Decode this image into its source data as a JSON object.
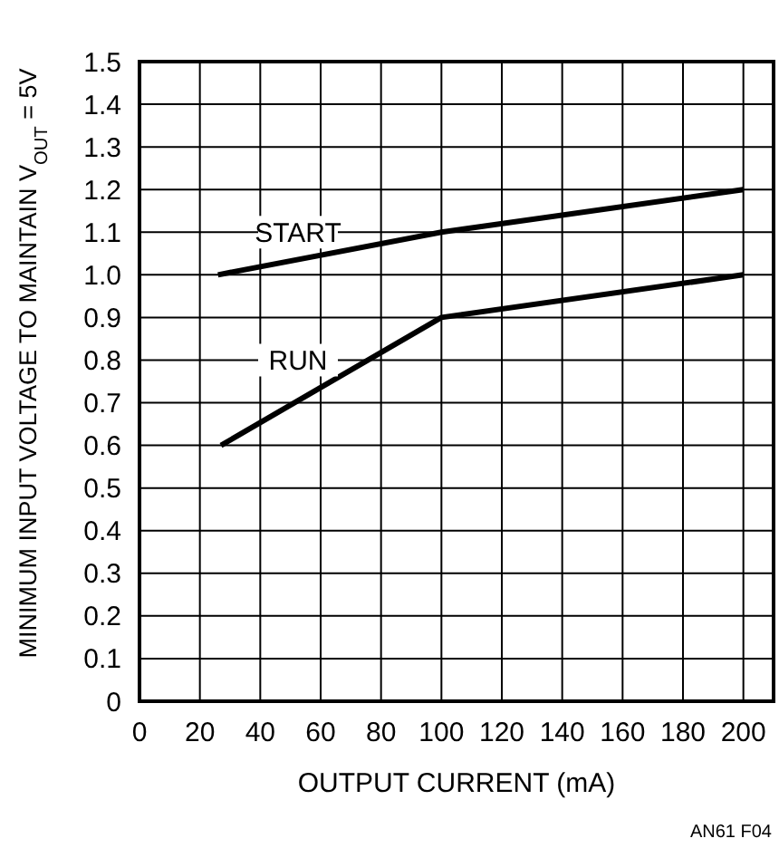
{
  "chart_data": {
    "type": "line",
    "xlabel": "OUTPUT CURRENT (mA)",
    "ylabel": "MINIMUM INPUT VOLTAGE TO MAINTAIN V$_{OUT}$ = 5V",
    "annotations": [
      "AN61 F04"
    ],
    "xlim": [
      0,
      210
    ],
    "xticks": [
      0,
      20,
      40,
      60,
      80,
      100,
      120,
      140,
      160,
      180,
      200
    ],
    "ylim": [
      0,
      1.5
    ],
    "yticks": [
      {
        "value": 0,
        "label": "0"
      },
      {
        "value": 0.1,
        "label": "0.1"
      },
      {
        "value": 0.2,
        "label": "0.2"
      },
      {
        "value": 0.3,
        "label": "0.3"
      },
      {
        "value": 0.4,
        "label": "0.4"
      },
      {
        "value": 0.5,
        "label": "0.5"
      },
      {
        "value": 0.6,
        "label": "0.6"
      },
      {
        "value": 0.7,
        "label": "0.7"
      },
      {
        "value": 0.8,
        "label": "0.8"
      },
      {
        "value": 0.9,
        "label": "0.9"
      },
      {
        "value": 1,
        "label": "1.0"
      },
      {
        "value": 1.1,
        "label": "1.1"
      },
      {
        "value": 1.2,
        "label": "1.2"
      },
      {
        "value": 1.3,
        "label": "1.3"
      },
      {
        "value": 1.4,
        "label": "1.4"
      },
      {
        "value": 1.5,
        "label": "1.5"
      }
    ],
    "grid": true,
    "marker": "none",
    "line_style": "solid",
    "series": [
      {
        "name": "START",
        "color": "#000000",
        "x": [
          26,
          100,
          200
        ],
        "values": [
          1.0,
          1.1,
          1.2
        ]
      },
      {
        "name": "RUN",
        "color": "#000000",
        "x": [
          27,
          100,
          200
        ],
        "values": [
          0.6,
          0.9,
          1.0
        ]
      }
    ]
  }
}
